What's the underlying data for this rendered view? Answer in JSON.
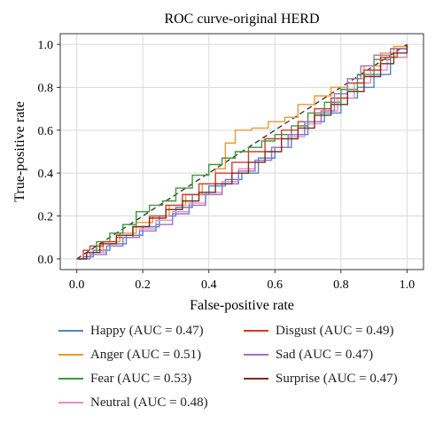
{
  "chart_data": {
    "type": "line",
    "title": "ROC curve-original HERD",
    "xlabel": "False-positive rate",
    "ylabel": "True-positive rate",
    "xlim": [
      -0.05,
      1.05
    ],
    "ylim": [
      -0.05,
      1.05
    ],
    "x_ticks": [
      "0.0",
      "0.2",
      "0.4",
      "0.6",
      "0.8",
      "1.0"
    ],
    "y_ticks": [
      "0.0",
      "0.2",
      "0.4",
      "0.6",
      "0.8",
      "1.0"
    ],
    "grid": true,
    "legend_position": "below",
    "diagonal": {
      "x": [
        0,
        1
      ],
      "y": [
        0,
        1
      ],
      "style": "dashed",
      "color": "#2a2a2a"
    },
    "series": [
      {
        "name": "Happy",
        "legend": "Happy (AUC = 0.47)",
        "color": "#4c86c6",
        "x": [
          0,
          0.02,
          0.05,
          0.1,
          0.15,
          0.2,
          0.25,
          0.3,
          0.35,
          0.4,
          0.45,
          0.5,
          0.55,
          0.6,
          0.65,
          0.7,
          0.75,
          0.8,
          0.85,
          0.9,
          0.95,
          1.0
        ],
        "y": [
          0,
          0.01,
          0.04,
          0.07,
          0.11,
          0.15,
          0.2,
          0.24,
          0.3,
          0.34,
          0.37,
          0.4,
          0.47,
          0.52,
          0.58,
          0.64,
          0.68,
          0.75,
          0.8,
          0.86,
          0.94,
          1.0
        ]
      },
      {
        "name": "Anger",
        "legend": "Anger (AUC = 0.51)",
        "color": "#f0962e",
        "x": [
          0,
          0.03,
          0.08,
          0.13,
          0.18,
          0.23,
          0.28,
          0.33,
          0.38,
          0.42,
          0.45,
          0.48,
          0.53,
          0.58,
          0.63,
          0.67,
          0.72,
          0.77,
          0.82,
          0.87,
          0.92,
          0.96,
          1.0
        ],
        "y": [
          0,
          0.03,
          0.08,
          0.12,
          0.17,
          0.2,
          0.25,
          0.3,
          0.35,
          0.42,
          0.54,
          0.6,
          0.61,
          0.64,
          0.66,
          0.72,
          0.76,
          0.8,
          0.84,
          0.9,
          0.96,
          0.99,
          1.0
        ]
      },
      {
        "name": "Fear",
        "legend": "Fear (AUC = 0.53)",
        "color": "#3a9a3a",
        "x": [
          0,
          0.03,
          0.06,
          0.1,
          0.14,
          0.18,
          0.22,
          0.26,
          0.3,
          0.35,
          0.4,
          0.44,
          0.48,
          0.52,
          0.56,
          0.6,
          0.65,
          0.7,
          0.75,
          0.8,
          0.85,
          0.9,
          0.95,
          1.0
        ],
        "y": [
          0,
          0.03,
          0.08,
          0.12,
          0.16,
          0.22,
          0.25,
          0.27,
          0.33,
          0.39,
          0.44,
          0.47,
          0.5,
          0.52,
          0.55,
          0.58,
          0.62,
          0.68,
          0.73,
          0.79,
          0.86,
          0.93,
          0.98,
          1.0
        ]
      },
      {
        "name": "Neutral",
        "legend": "Neutral (AUC = 0.48)",
        "color": "#e68fc0",
        "x": [
          0,
          0.04,
          0.09,
          0.14,
          0.19,
          0.24,
          0.29,
          0.34,
          0.39,
          0.44,
          0.49,
          0.54,
          0.59,
          0.64,
          0.69,
          0.74,
          0.79,
          0.84,
          0.89,
          0.94,
          1.0
        ],
        "y": [
          0,
          0.03,
          0.06,
          0.1,
          0.14,
          0.18,
          0.22,
          0.26,
          0.31,
          0.36,
          0.42,
          0.46,
          0.52,
          0.57,
          0.63,
          0.69,
          0.75,
          0.82,
          0.88,
          0.94,
          1.0
        ]
      },
      {
        "name": "Disgust",
        "legend": "Disgust (AUC = 0.49)",
        "color": "#d13c2f",
        "x": [
          0,
          0.02,
          0.04,
          0.08,
          0.12,
          0.17,
          0.22,
          0.27,
          0.32,
          0.37,
          0.42,
          0.47,
          0.52,
          0.57,
          0.62,
          0.67,
          0.72,
          0.77,
          0.82,
          0.87,
          0.92,
          0.97,
          1.0
        ],
        "y": [
          0,
          0.04,
          0.06,
          0.08,
          0.1,
          0.15,
          0.2,
          0.25,
          0.3,
          0.35,
          0.4,
          0.45,
          0.5,
          0.56,
          0.6,
          0.64,
          0.7,
          0.75,
          0.82,
          0.88,
          0.94,
          0.98,
          1.0
        ]
      },
      {
        "name": "Sad",
        "legend": "Sad (AUC = 0.47)",
        "color": "#9b73c9",
        "x": [
          0,
          0.04,
          0.09,
          0.14,
          0.19,
          0.24,
          0.29,
          0.34,
          0.39,
          0.44,
          0.49,
          0.54,
          0.59,
          0.64,
          0.69,
          0.74,
          0.78,
          0.82,
          0.86,
          0.9,
          0.95,
          1.0
        ],
        "y": [
          0,
          0.02,
          0.06,
          0.1,
          0.13,
          0.16,
          0.21,
          0.25,
          0.3,
          0.35,
          0.41,
          0.46,
          0.52,
          0.58,
          0.64,
          0.69,
          0.77,
          0.84,
          0.9,
          0.95,
          0.98,
          1.0
        ]
      },
      {
        "name": "Surprise",
        "legend": "Surprise (AUC = 0.47)",
        "color": "#7a2e24",
        "x": [
          0,
          0.03,
          0.07,
          0.12,
          0.17,
          0.22,
          0.27,
          0.32,
          0.37,
          0.42,
          0.47,
          0.52,
          0.57,
          0.62,
          0.67,
          0.72,
          0.77,
          0.82,
          0.87,
          0.92,
          0.96,
          1.0
        ],
        "y": [
          0,
          0.03,
          0.07,
          0.11,
          0.15,
          0.19,
          0.23,
          0.27,
          0.31,
          0.35,
          0.4,
          0.45,
          0.5,
          0.56,
          0.61,
          0.67,
          0.72,
          0.78,
          0.85,
          0.91,
          0.96,
          1.0
        ]
      }
    ]
  }
}
